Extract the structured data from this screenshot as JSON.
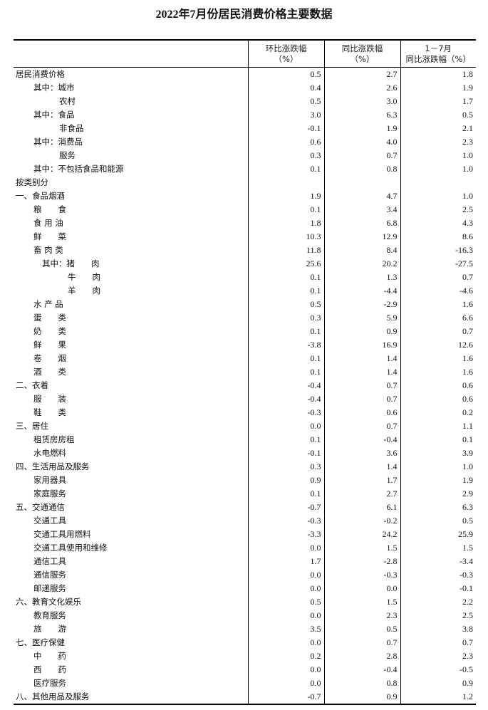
{
  "title": "2022年7月份居民消费价格主要数据",
  "headers": [
    {
      "line1": "环比涨跌幅",
      "line2": "（%）"
    },
    {
      "line1": "同比涨跌幅",
      "line2": "（%）"
    },
    {
      "line1": "1－7月",
      "line2": "同比涨跌幅（%）"
    }
  ],
  "rows": [
    {
      "label": "居民消费价格",
      "indent": "a",
      "v": [
        "0.5",
        "2.7",
        "1.8"
      ]
    },
    {
      "label": "其中：城市",
      "indent": "b",
      "v": [
        "0.4",
        "2.6",
        "1.9"
      ]
    },
    {
      "label": "农村",
      "indent": "c",
      "v": [
        "0.5",
        "3.0",
        "1.7"
      ]
    },
    {
      "label": "其中：食品",
      "indent": "b",
      "v": [
        "3.0",
        "6.3",
        "0.5"
      ]
    },
    {
      "label": "非食品",
      "indent": "c",
      "v": [
        "-0.1",
        "1.9",
        "2.1"
      ]
    },
    {
      "label": "其中：消费品",
      "indent": "b",
      "v": [
        "0.6",
        "4.0",
        "2.3"
      ]
    },
    {
      "label": "服务",
      "indent": "c",
      "v": [
        "0.3",
        "0.7",
        "1.0"
      ]
    },
    {
      "label": "其中：不包括食品和能源",
      "indent": "b",
      "v": [
        "0.1",
        "0.8",
        "1.0"
      ]
    },
    {
      "label": "按类别分",
      "indent": "a",
      "v": [
        "",
        "",
        ""
      ]
    },
    {
      "label": "一、食品烟酒",
      "indent": "a",
      "v": [
        "1.9",
        "4.7",
        "1.0"
      ]
    },
    {
      "label": "粮　　食",
      "indent": "b",
      "v": [
        "0.1",
        "3.4",
        "2.5"
      ]
    },
    {
      "label": "食 用 油",
      "indent": "b",
      "v": [
        "1.8",
        "6.8",
        "4.3"
      ]
    },
    {
      "label": "鲜　　菜",
      "indent": "b",
      "v": [
        "10.3",
        "12.9",
        "8.6"
      ]
    },
    {
      "label": "畜 肉 类",
      "indent": "b",
      "v": [
        "11.8",
        "8.4",
        "-16.3"
      ]
    },
    {
      "label": "其中：猪　　肉",
      "indent": "d",
      "v": [
        "25.6",
        "20.2",
        "-27.5"
      ]
    },
    {
      "label": "牛　　肉",
      "indent": "e",
      "v": [
        "0.1",
        "1.3",
        "0.7"
      ]
    },
    {
      "label": "羊　　肉",
      "indent": "e",
      "v": [
        "0.1",
        "-4.4",
        "-4.6"
      ]
    },
    {
      "label": "水 产 品",
      "indent": "b",
      "v": [
        "0.5",
        "-2.9",
        "1.6"
      ]
    },
    {
      "label": "蛋　　类",
      "indent": "b",
      "v": [
        "0.3",
        "5.9",
        "6.6"
      ]
    },
    {
      "label": "奶　　类",
      "indent": "b",
      "v": [
        "0.1",
        "0.9",
        "0.7"
      ]
    },
    {
      "label": "鲜　　果",
      "indent": "b",
      "v": [
        "-3.8",
        "16.9",
        "12.6"
      ]
    },
    {
      "label": "卷　　烟",
      "indent": "b",
      "v": [
        "0.1",
        "1.4",
        "1.6"
      ]
    },
    {
      "label": "酒　　类",
      "indent": "b",
      "v": [
        "0.1",
        "1.4",
        "1.6"
      ]
    },
    {
      "label": "二、衣着",
      "indent": "a",
      "v": [
        "-0.4",
        "0.7",
        "0.6"
      ]
    },
    {
      "label": "服　　装",
      "indent": "b",
      "v": [
        "-0.4",
        "0.7",
        "0.6"
      ]
    },
    {
      "label": "鞋　　类",
      "indent": "b",
      "v": [
        "-0.3",
        "0.6",
        "0.2"
      ]
    },
    {
      "label": "三、居住",
      "indent": "a",
      "v": [
        "0.0",
        "0.7",
        "1.1"
      ]
    },
    {
      "label": "租赁房房租",
      "indent": "b",
      "v": [
        "0.1",
        "-0.4",
        "0.1"
      ]
    },
    {
      "label": "水电燃料",
      "indent": "b",
      "v": [
        "-0.1",
        "3.6",
        "3.9"
      ]
    },
    {
      "label": "四、生活用品及服务",
      "indent": "a",
      "v": [
        "0.3",
        "1.4",
        "1.0"
      ]
    },
    {
      "label": "家用器具",
      "indent": "b",
      "v": [
        "0.9",
        "1.7",
        "1.9"
      ]
    },
    {
      "label": "家庭服务",
      "indent": "b",
      "v": [
        "0.1",
        "2.7",
        "2.9"
      ]
    },
    {
      "label": "五、交通通信",
      "indent": "a",
      "v": [
        "-0.7",
        "6.1",
        "6.3"
      ]
    },
    {
      "label": "交通工具",
      "indent": "b",
      "v": [
        "-0.3",
        "-0.2",
        "0.5"
      ]
    },
    {
      "label": "交通工具用燃料",
      "indent": "b",
      "v": [
        "-3.3",
        "24.2",
        "25.9"
      ]
    },
    {
      "label": "交通工具使用和维修",
      "indent": "b",
      "v": [
        "0.0",
        "1.5",
        "1.5"
      ]
    },
    {
      "label": "通信工具",
      "indent": "b",
      "v": [
        "1.7",
        "-2.8",
        "-3.4"
      ]
    },
    {
      "label": "通信服务",
      "indent": "b",
      "v": [
        "0.0",
        "-0.3",
        "-0.3"
      ]
    },
    {
      "label": "邮递服务",
      "indent": "b",
      "v": [
        "0.0",
        "0.0",
        "-0.1"
      ]
    },
    {
      "label": "六、教育文化娱乐",
      "indent": "a",
      "v": [
        "0.5",
        "1.5",
        "2.2"
      ]
    },
    {
      "label": "教育服务",
      "indent": "b",
      "v": [
        "0.0",
        "2.3",
        "2.5"
      ]
    },
    {
      "label": "旅　　游",
      "indent": "b",
      "v": [
        "3.5",
        "0.5",
        "3.8"
      ]
    },
    {
      "label": "七、医疗保健",
      "indent": "a",
      "v": [
        "0.0",
        "0.7",
        "0.7"
      ]
    },
    {
      "label": "中　　药",
      "indent": "b",
      "v": [
        "0.2",
        "2.8",
        "2.3"
      ]
    },
    {
      "label": "西　　药",
      "indent": "b",
      "v": [
        "0.0",
        "-0.4",
        "-0.5"
      ]
    },
    {
      "label": "医疗服务",
      "indent": "b",
      "v": [
        "0.0",
        "0.8",
        "0.9"
      ]
    },
    {
      "label": "八、其他用品及服务",
      "indent": "a",
      "v": [
        "-0.7",
        "0.9",
        "1.2"
      ]
    }
  ]
}
